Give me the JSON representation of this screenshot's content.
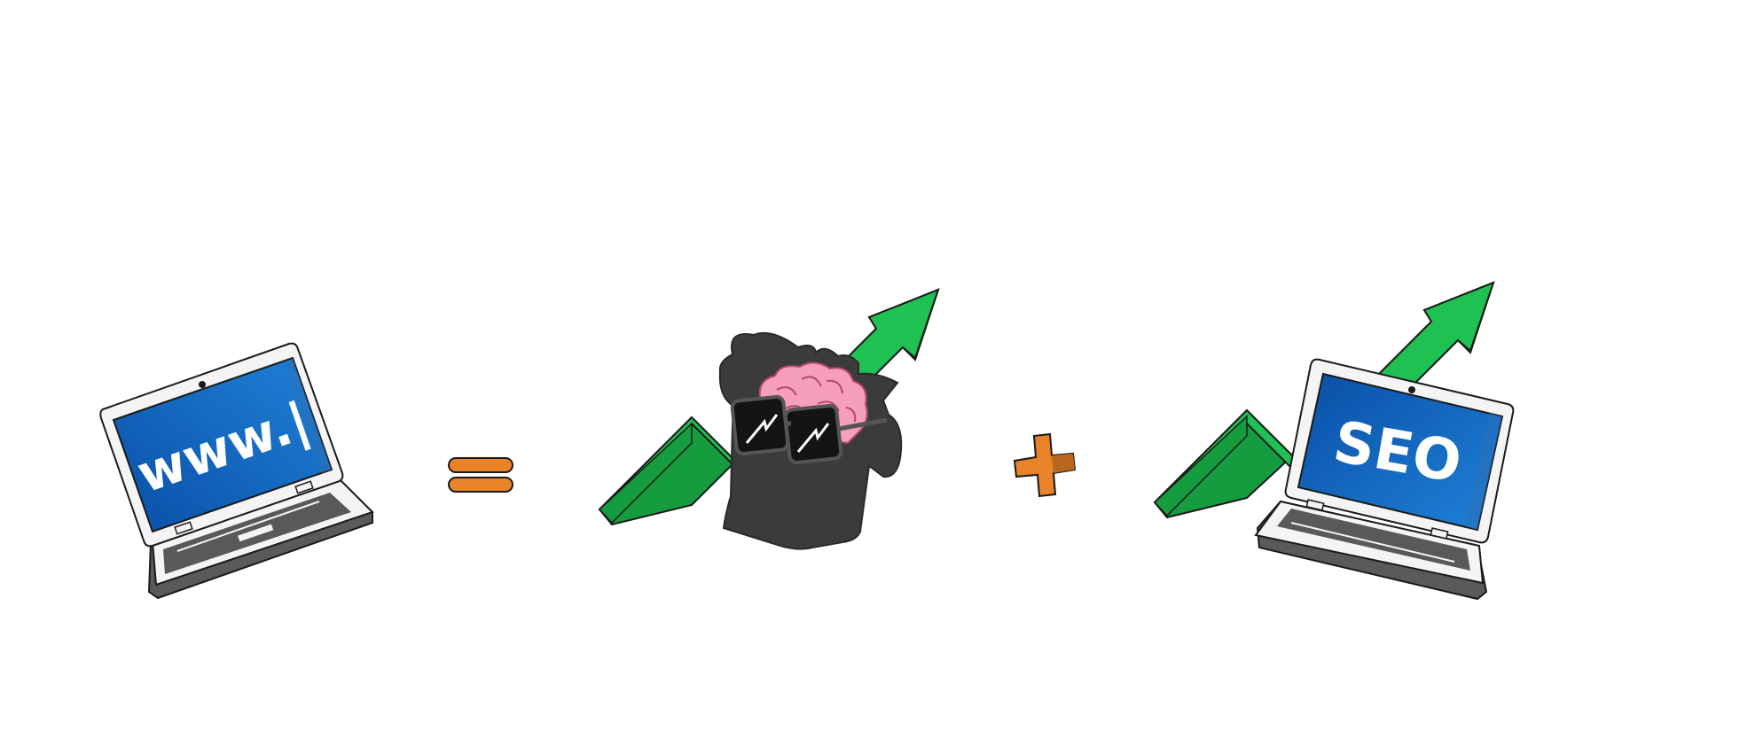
{
  "illustration": {
    "left_laptop": {
      "screen_text": "www.|"
    },
    "operator_equals": {
      "icon": "equals-icon"
    },
    "brain_growth": {
      "icons": [
        "growth-arrow-icon",
        "brain-icon",
        "sunglasses-icon"
      ]
    },
    "operator_plus": {
      "icon": "plus-icon"
    },
    "right_laptop": {
      "screen_text": "SEO"
    }
  },
  "colors": {
    "screen_blue_dark": "#0a4ea6",
    "screen_blue_light": "#1f82d8",
    "arrow_green": "#1fc152",
    "arrow_green_dark": "#149c3e",
    "operator_orange": "#e8832a",
    "operator_orange_dark": "#b8661c",
    "brain_pink": "#f59fbd",
    "head_dark": "#3b3b3b",
    "outline": "#1a1a1a"
  }
}
